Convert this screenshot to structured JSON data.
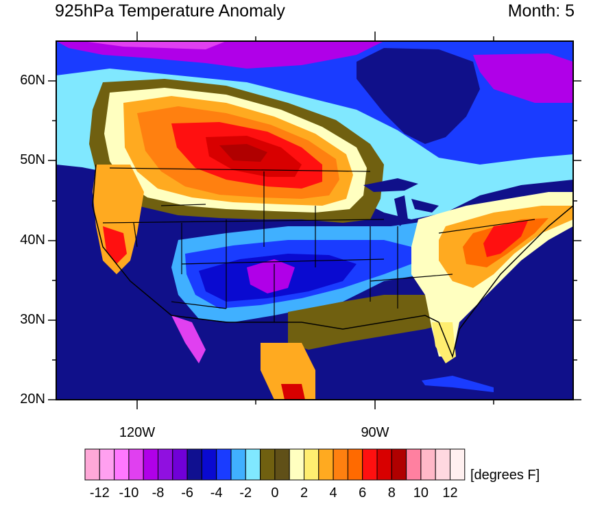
{
  "title": "925hPa Temperature Anomaly",
  "month_label": "Month: 5",
  "lat_labels": [
    "60N",
    "50N",
    "40N",
    "30N",
    "20N"
  ],
  "lon_labels": [
    "120W",
    "90W"
  ],
  "colorbar": {
    "units": "[degrees F]",
    "labels": [
      "-12",
      "-10",
      "-8",
      "-6",
      "-4",
      "-2",
      "0",
      "2",
      "4",
      "6",
      "8",
      "10",
      "12"
    ],
    "colors": [
      "#ffa8d8",
      "#ffa0f0",
      "#ff78ff",
      "#e040f0",
      "#b000e8",
      "#9010e0",
      "#7000d8",
      "#101090",
      "#0a0ad0",
      "#1a3cff",
      "#40b0ff",
      "#80e8ff",
      "#706010",
      "#605018",
      "#ffffc0",
      "#ffee70",
      "#ffaa20",
      "#ff8010",
      "#ff6a00",
      "#ff1010",
      "#d80000",
      "#b00000",
      "#ff80a0",
      "#ffb8c8",
      "#ffd8e0",
      "#fff0f0"
    ]
  },
  "colors": {
    "ocean": "#10108a",
    "border": "#000000"
  }
}
